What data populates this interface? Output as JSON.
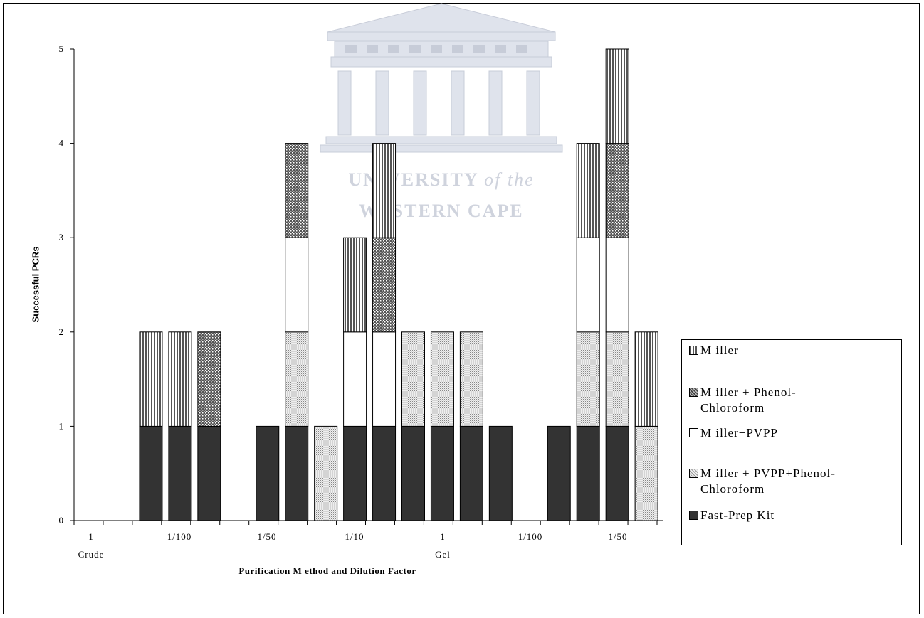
{
  "watermark": {
    "line1": "UNIVERSITY",
    "line1_italic": "of the",
    "line2": "WESTERN CAPE"
  },
  "chart_data": {
    "type": "bar",
    "stacked": true,
    "xlabel": "Purification M ethod and Dilution Factor",
    "ylabel": "Successful PCRs",
    "ylim": [
      0,
      5
    ],
    "yticks": [
      0,
      1,
      2,
      3,
      4,
      5
    ],
    "grid": false,
    "legend_position": "right",
    "x_tick_labels": [
      "1",
      "1/100",
      "1/50",
      "1/10",
      "1",
      "1/100",
      "1/50"
    ],
    "x_group_labels": [
      "Crude",
      "Gel"
    ],
    "bars": 19,
    "series": [
      {
        "name": "Fast-Prep Kit",
        "values": [
          0,
          1,
          1,
          1,
          0,
          1,
          1,
          0,
          1,
          1,
          1,
          1,
          1,
          1,
          0,
          1,
          1,
          1,
          0
        ]
      },
      {
        "name": "M iller + PVPP+Phenol-Chloroform",
        "values": [
          0,
          0,
          0,
          0,
          0,
          0,
          1,
          1,
          0,
          0,
          1,
          1,
          1,
          0,
          0,
          0,
          1,
          1,
          1
        ]
      },
      {
        "name": "M iller+PVPP",
        "values": [
          0,
          0,
          0,
          0,
          0,
          0,
          1,
          0,
          1,
          1,
          0,
          0,
          0,
          0,
          0,
          0,
          1,
          1,
          0
        ]
      },
      {
        "name": "M iller + Phenol-Chloroform",
        "values": [
          0,
          0,
          0,
          1,
          0,
          0,
          1,
          0,
          0,
          1,
          0,
          0,
          0,
          0,
          0,
          0,
          0,
          1,
          0
        ]
      },
      {
        "name": "M iller",
        "values": [
          0,
          1,
          1,
          0,
          0,
          0,
          0,
          0,
          1,
          1,
          0,
          0,
          0,
          0,
          0,
          0,
          1,
          1,
          1
        ]
      }
    ],
    "legend": [
      {
        "label": "M iller",
        "pattern": "vlines"
      },
      {
        "label": "M iller + Phenol-\nChloroform",
        "pattern": "cross"
      },
      {
        "label": "M iller+PVPP",
        "pattern": "white"
      },
      {
        "label": "M iller + PVPP+Phenol-\nChloroform",
        "pattern": "dots"
      },
      {
        "label": "Fast-Prep Kit",
        "pattern": "dark"
      }
    ]
  }
}
